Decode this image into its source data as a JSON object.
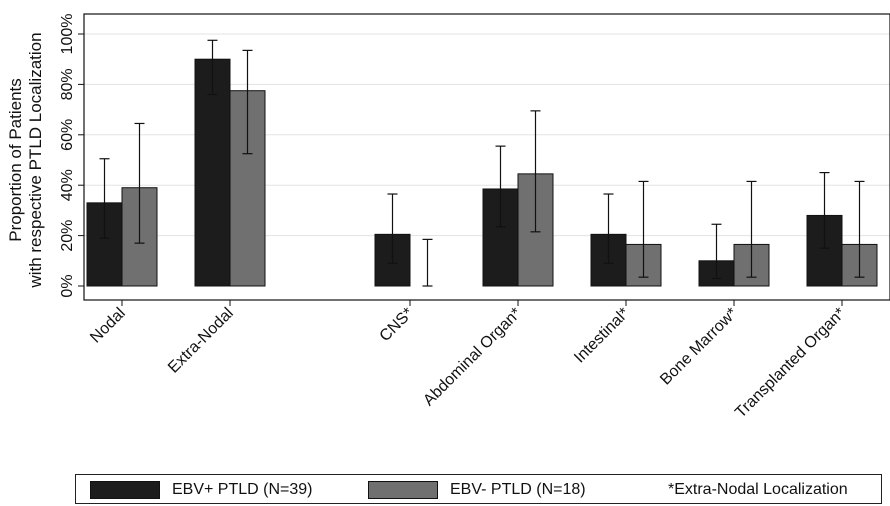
{
  "chart_data": {
    "type": "bar",
    "ylabel_lines": [
      "Proportion of Patients",
      "with respective PTLD Localization"
    ],
    "ylim": [
      0,
      100
    ],
    "y_ticks": [
      "0%",
      "20%",
      "40%",
      "60%",
      "80%",
      "100%"
    ],
    "y_tick_values": [
      0,
      20,
      40,
      60,
      80,
      100
    ],
    "grid": "horizontal",
    "categories": [
      "Nodal",
      "Extra-Nodal",
      "CNS*",
      "Abdominal Organ*",
      "Intestinal*",
      "Bone Marrow*",
      "Transplanted Organ*"
    ],
    "series": [
      {
        "name": "EBV+ PTLD (N=39)",
        "color": "#1c1c1c",
        "values": [
          33,
          90,
          20.5,
          38.5,
          20.5,
          10,
          28
        ],
        "error_low": [
          19,
          76,
          9,
          23.5,
          9,
          3,
          15
        ],
        "error_high": [
          50.5,
          97.5,
          36.5,
          55.5,
          36.5,
          24.5,
          45
        ]
      },
      {
        "name": "EBV- PTLD (N=18)",
        "color": "#707070",
        "values": [
          39,
          77.5,
          0,
          44.5,
          16.5,
          16.5,
          16.5
        ],
        "error_low": [
          17,
          52.5,
          0,
          21.5,
          3.5,
          3.5,
          3.5
        ],
        "error_high": [
          64.5,
          93.5,
          18.5,
          69.5,
          41.5,
          41.5,
          41.5
        ]
      }
    ],
    "legend_note": "*Extra-Nodal Localization"
  }
}
